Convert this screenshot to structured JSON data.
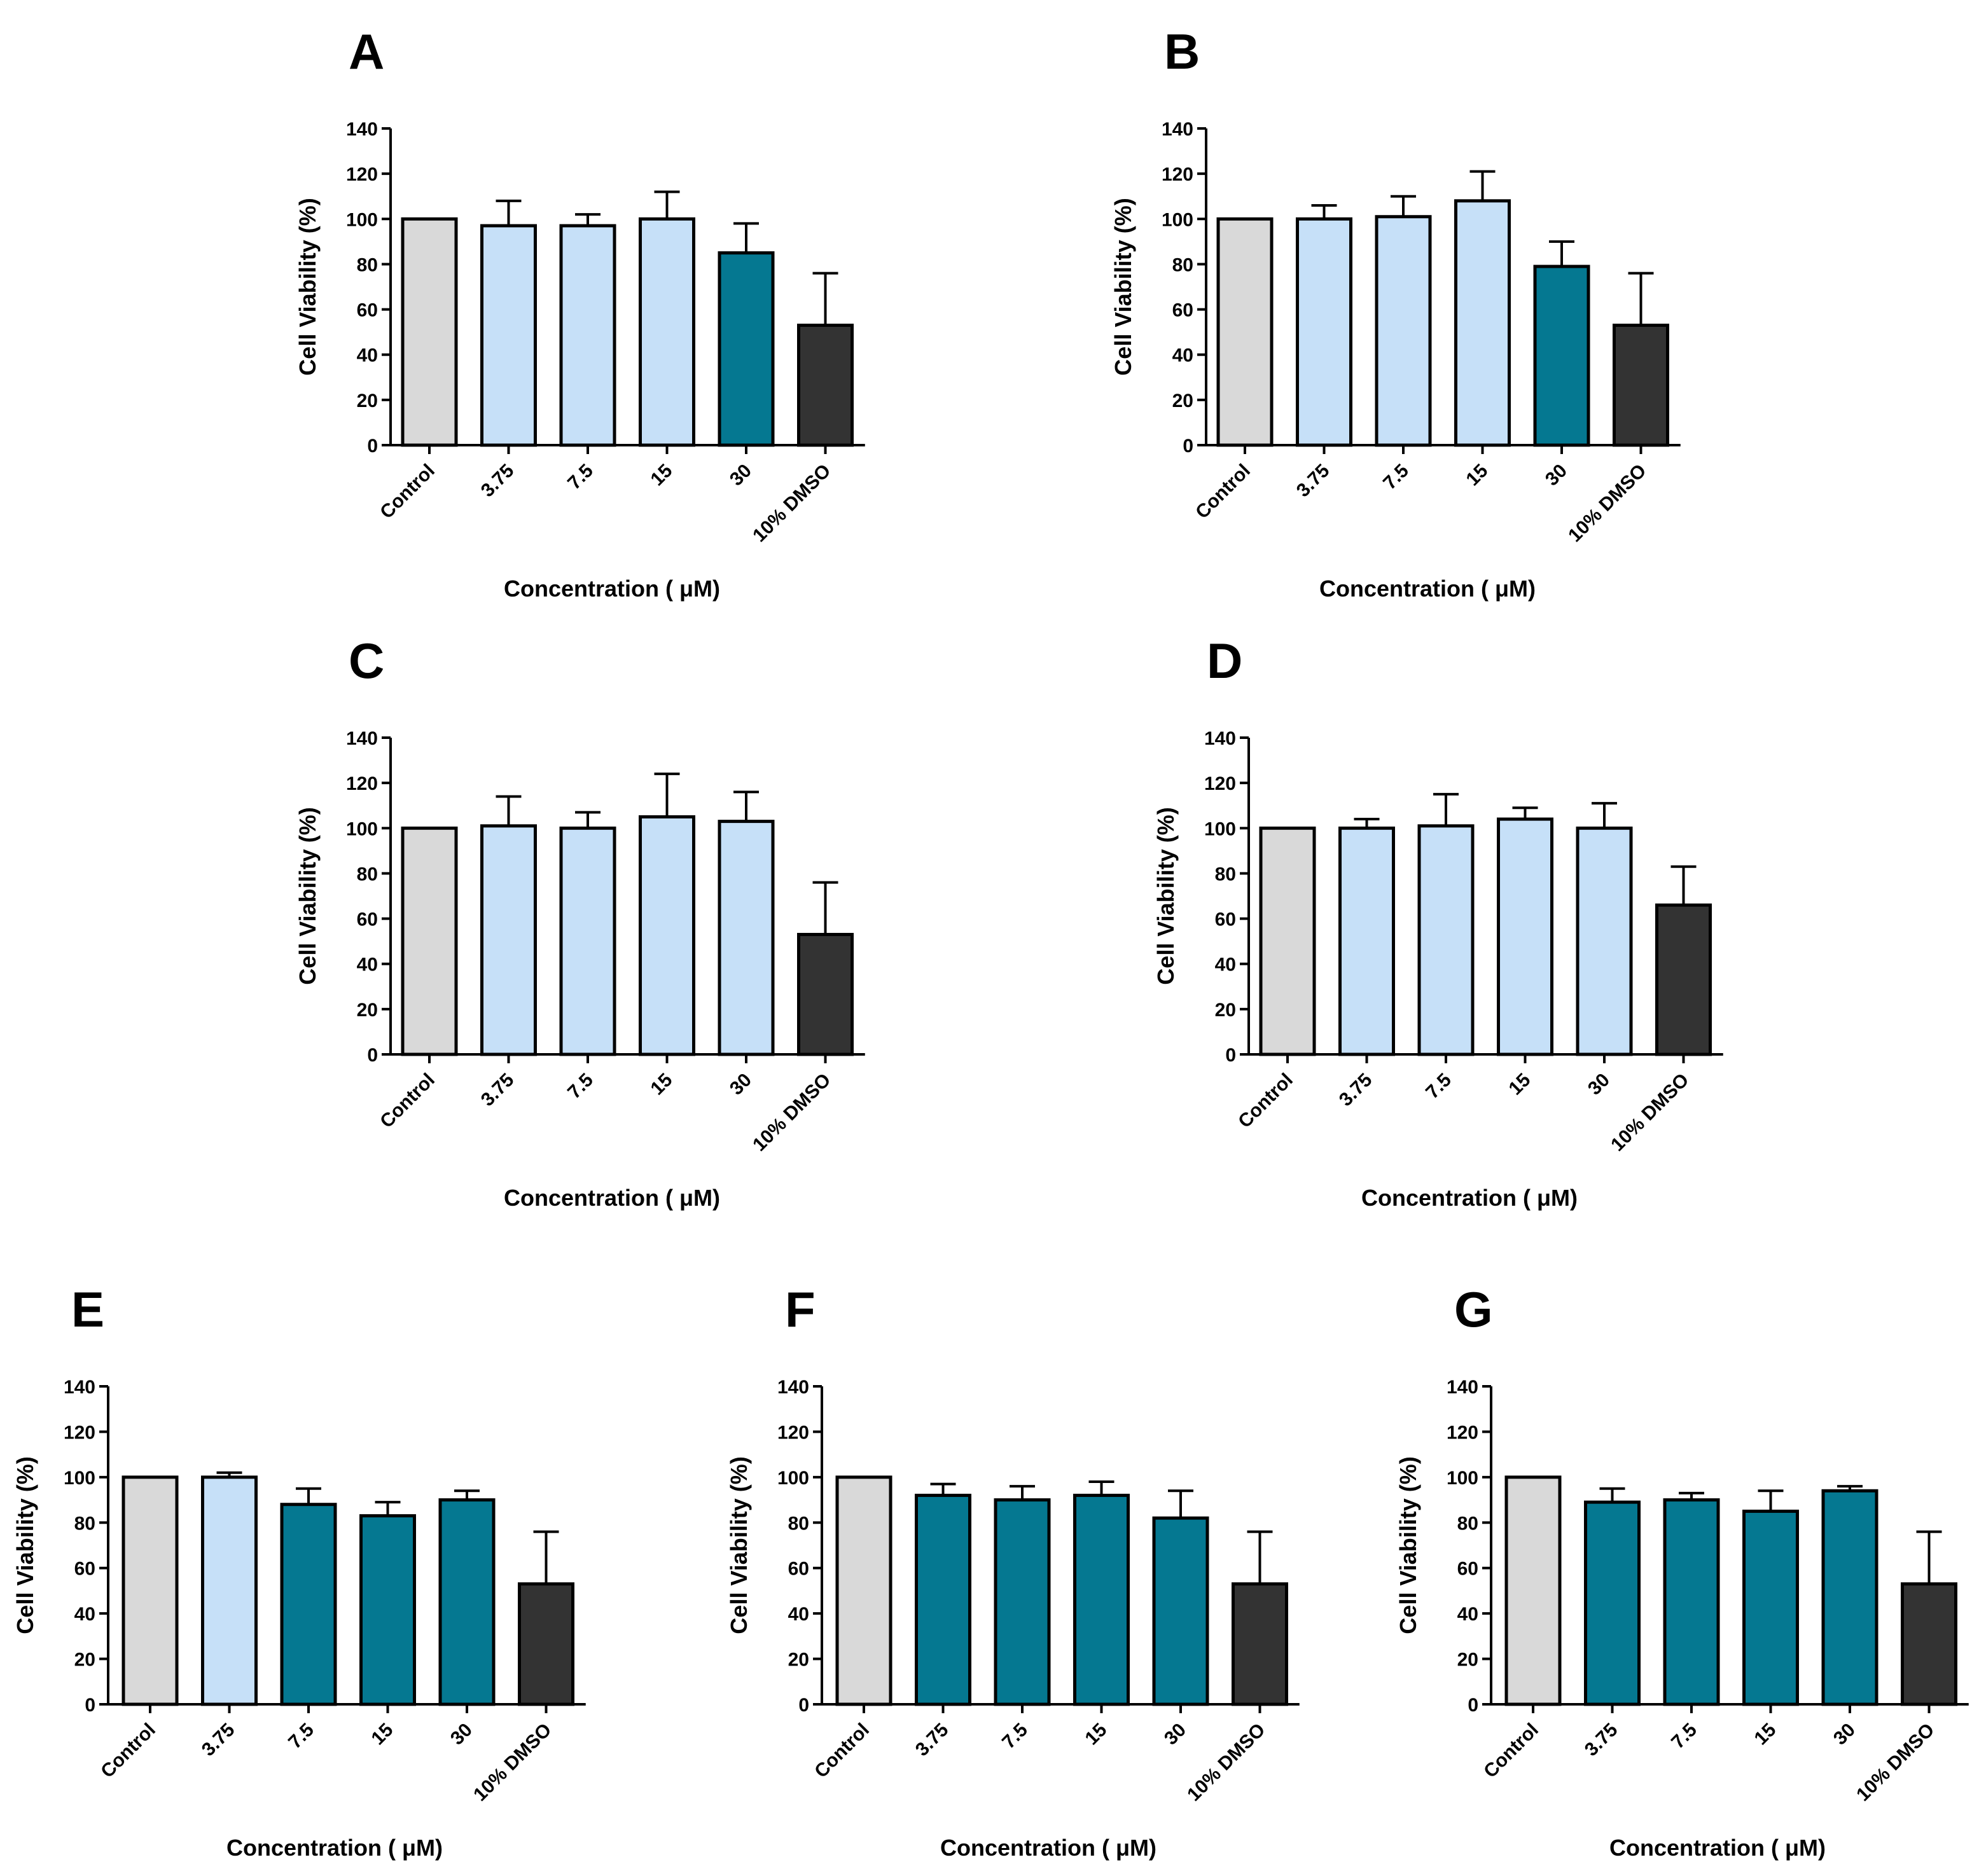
{
  "figure": {
    "panels": [
      "A",
      "B",
      "C",
      "D",
      "E",
      "F",
      "G"
    ]
  },
  "colors": {
    "control": "#d9d9d9",
    "light_blue": "#c6e0f8",
    "teal": "#057891",
    "dmso": "#333333",
    "outline": "#000000"
  },
  "chart_data": [
    {
      "panel": "A",
      "type": "bar",
      "categories": [
        "Control",
        "3.75",
        "7.5",
        "15",
        "30",
        "10% DMSO"
      ],
      "values": [
        100,
        97,
        97,
        100,
        85,
        53
      ],
      "errors": [
        0,
        11,
        5,
        12,
        13,
        23
      ],
      "fills": [
        "control",
        "light_blue",
        "light_blue",
        "light_blue",
        "teal",
        "dmso"
      ],
      "xlabel": "Concentration ( μM)",
      "ylabel": "Cell Viability (%)",
      "ylim": [
        0,
        140
      ],
      "yticks": [
        0,
        20,
        40,
        60,
        80,
        100,
        120,
        140
      ],
      "grid": false
    },
    {
      "panel": "B",
      "type": "bar",
      "categories": [
        "Control",
        "3.75",
        "7.5",
        "15",
        "30",
        "10% DMSO"
      ],
      "values": [
        100,
        100,
        101,
        108,
        79,
        53
      ],
      "errors": [
        0,
        6,
        9,
        13,
        11,
        23
      ],
      "fills": [
        "control",
        "light_blue",
        "light_blue",
        "light_blue",
        "teal",
        "dmso"
      ],
      "xlabel": "Concentration ( μM)",
      "ylabel": "Cell Viability (%)",
      "ylim": [
        0,
        140
      ],
      "yticks": [
        0,
        20,
        40,
        60,
        80,
        100,
        120,
        140
      ],
      "grid": false
    },
    {
      "panel": "C",
      "type": "bar",
      "categories": [
        "Control",
        "3.75",
        "7.5",
        "15",
        "30",
        "10% DMSO"
      ],
      "values": [
        100,
        101,
        100,
        105,
        103,
        53
      ],
      "errors": [
        0,
        13,
        7,
        19,
        13,
        23
      ],
      "fills": [
        "control",
        "light_blue",
        "light_blue",
        "light_blue",
        "light_blue",
        "dmso"
      ],
      "xlabel": "Concentration ( μM)",
      "ylabel": "Cell Viability (%)",
      "ylim": [
        0,
        140
      ],
      "yticks": [
        0,
        20,
        40,
        60,
        80,
        100,
        120,
        140
      ],
      "grid": false
    },
    {
      "panel": "D",
      "type": "bar",
      "categories": [
        "Control",
        "3.75",
        "7.5",
        "15",
        "30",
        "10% DMSO"
      ],
      "values": [
        100,
        100,
        101,
        104,
        100,
        66
      ],
      "errors": [
        0,
        4,
        14,
        5,
        11,
        17
      ],
      "fills": [
        "control",
        "light_blue",
        "light_blue",
        "light_blue",
        "light_blue",
        "dmso"
      ],
      "xlabel": "Concentration ( μM)",
      "ylabel": "Cell Viability (%)",
      "ylim": [
        0,
        140
      ],
      "yticks": [
        0,
        20,
        40,
        60,
        80,
        100,
        120,
        140
      ],
      "grid": false
    },
    {
      "panel": "E",
      "type": "bar",
      "categories": [
        "Control",
        "3.75",
        "7.5",
        "15",
        "30",
        "10% DMSO"
      ],
      "values": [
        100,
        100,
        88,
        83,
        90,
        53
      ],
      "errors": [
        0,
        2,
        7,
        6,
        4,
        23
      ],
      "fills": [
        "control",
        "light_blue",
        "teal",
        "teal",
        "teal",
        "dmso"
      ],
      "xlabel": "Concentration ( μM)",
      "ylabel": "Cell Viability (%)",
      "ylim": [
        0,
        140
      ],
      "yticks": [
        0,
        20,
        40,
        60,
        80,
        100,
        120,
        140
      ],
      "grid": false
    },
    {
      "panel": "F",
      "type": "bar",
      "categories": [
        "Control",
        "3.75",
        "7.5",
        "15",
        "30",
        "10% DMSO"
      ],
      "values": [
        100,
        92,
        90,
        92,
        82,
        53
      ],
      "errors": [
        0,
        5,
        6,
        6,
        12,
        23
      ],
      "fills": [
        "control",
        "teal",
        "teal",
        "teal",
        "teal",
        "dmso"
      ],
      "xlabel": "Concentration ( μM)",
      "ylabel": "Cell Viability (%)",
      "ylim": [
        0,
        140
      ],
      "yticks": [
        0,
        20,
        40,
        60,
        80,
        100,
        120,
        140
      ],
      "grid": false
    },
    {
      "panel": "G",
      "type": "bar",
      "categories": [
        "Control",
        "3.75",
        "7.5",
        "15",
        "30",
        "10% DMSO"
      ],
      "values": [
        100,
        89,
        90,
        85,
        94,
        53
      ],
      "errors": [
        0,
        6,
        3,
        9,
        2,
        23
      ],
      "fills": [
        "control",
        "teal",
        "teal",
        "teal",
        "teal",
        "dmso"
      ],
      "xlabel": "Concentration ( μM)",
      "ylabel": "Cell Viability (%)",
      "ylim": [
        0,
        140
      ],
      "yticks": [
        0,
        20,
        40,
        60,
        80,
        100,
        120,
        140
      ],
      "grid": false
    }
  ]
}
